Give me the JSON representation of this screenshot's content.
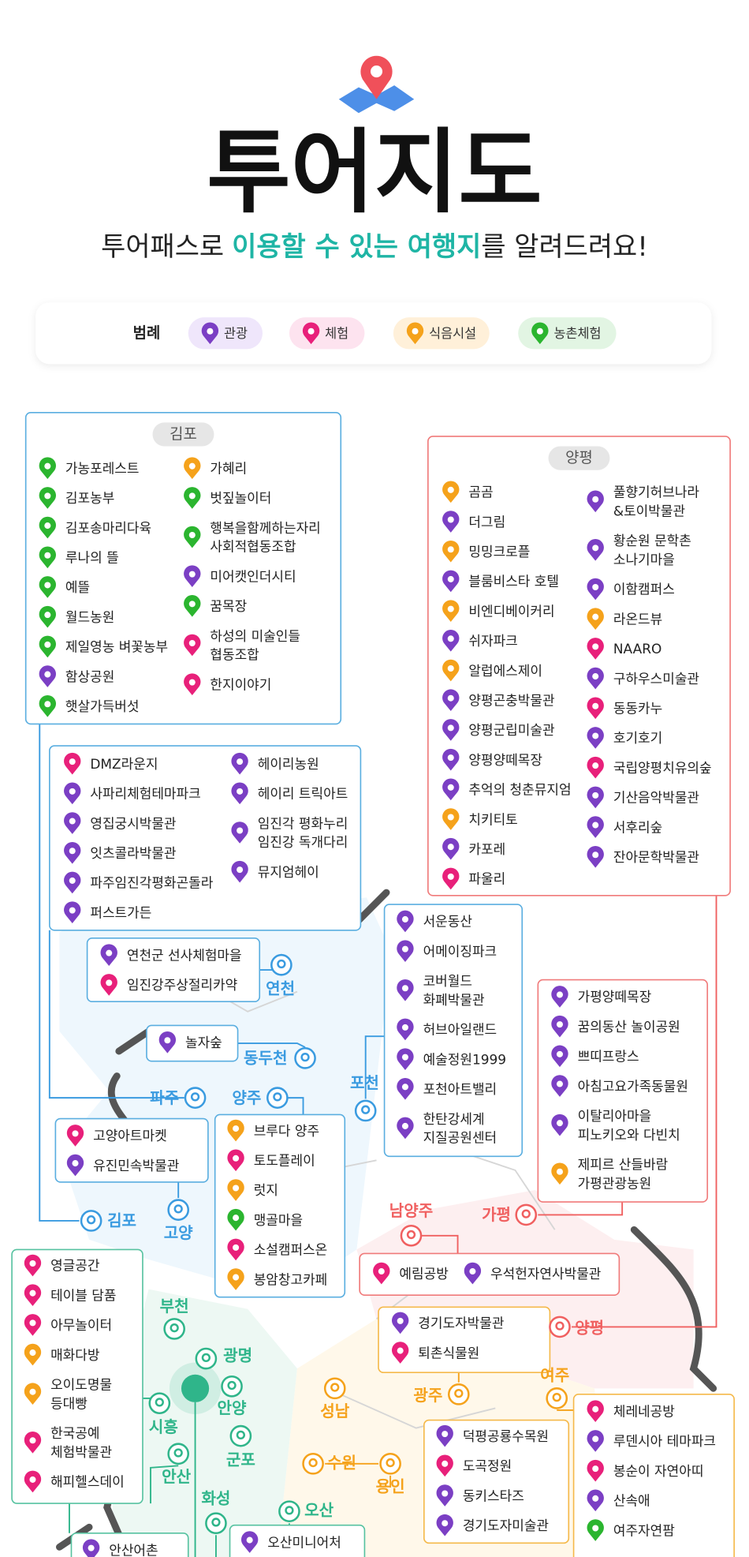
{
  "header": {
    "title": "투어지도",
    "subtitle": [
      "투어패스로",
      "이용할 수 있는 여행지",
      "를 알려드려요!"
    ]
  },
  "legend": {
    "label": "범례",
    "items": [
      {
        "name": "관광",
        "color": "#7b3fc4",
        "bg": "#efe6fb"
      },
      {
        "name": "체험",
        "color": "#e8207a",
        "bg": "#fde3ef"
      },
      {
        "name": "식음시설",
        "color": "#f5a21b",
        "bg": "#fff0d9"
      },
      {
        "name": "농촌체험",
        "color": "#2bb52f",
        "bg": "#e2f5e3"
      }
    ]
  },
  "regions": [
    {
      "title": "김포",
      "columns": [
        [
          {
            "name": [
              "가농포레스트"
            ],
            "kind": 3
          },
          {
            "name": [
              "김포농부"
            ],
            "kind": 3
          },
          {
            "name": [
              "김포송마리다육"
            ],
            "kind": 3
          },
          {
            "name": [
              "루나의 뜰"
            ],
            "kind": 3
          },
          {
            "name": [
              "예뜰"
            ],
            "kind": 3
          },
          {
            "name": [
              "월드농원"
            ],
            "kind": 3
          },
          {
            "name": [
              "제일영농 벼꽃농부"
            ],
            "kind": 3
          },
          {
            "name": [
              "함상공원"
            ],
            "kind": 0
          },
          {
            "name": [
              "햇살가득버섯"
            ],
            "kind": 3
          }
        ],
        [
          {
            "name": [
              "가혜리"
            ],
            "kind": 2
          },
          {
            "name": [
              "벗짚놀이터"
            ],
            "kind": 3
          },
          {
            "name": [
              "행복을함께하는자리",
              "사회적협동조합"
            ],
            "kind": 3
          },
          {
            "name": [
              "미어캣인더시티"
            ],
            "kind": 0
          },
          {
            "name": [
              "꿈목장"
            ],
            "kind": 3
          },
          {
            "name": [
              "하성의 미술인들",
              "협동조합"
            ],
            "kind": 1
          },
          {
            "name": [
              "한지이야기"
            ],
            "kind": 1
          }
        ]
      ]
    },
    {
      "title": "양평",
      "columns": [
        [
          {
            "name": [
              "곰곰"
            ],
            "kind": 2
          },
          {
            "name": [
              "더그림"
            ],
            "kind": 0
          },
          {
            "name": [
              "밍밍크로플"
            ],
            "kind": 2
          },
          {
            "name": [
              "블룸비스타 호텔"
            ],
            "kind": 0
          },
          {
            "name": [
              "비엔디베이커리"
            ],
            "kind": 2
          },
          {
            "name": [
              "쉬자파크"
            ],
            "kind": 0
          },
          {
            "name": [
              "알럽에스제이"
            ],
            "kind": 2
          },
          {
            "name": [
              "양평곤충박물관"
            ],
            "kind": 0
          },
          {
            "name": [
              "양평군립미술관"
            ],
            "kind": 0
          },
          {
            "name": [
              "양평양떼목장"
            ],
            "kind": 0
          },
          {
            "name": [
              "추억의 청춘뮤지엄"
            ],
            "kind": 0
          },
          {
            "name": [
              "치키티토"
            ],
            "kind": 2
          },
          {
            "name": [
              "카포레"
            ],
            "kind": 0
          },
          {
            "name": [
              "파울리"
            ],
            "kind": 1
          }
        ],
        [
          {
            "name": [
              "풀향기허브나라",
              "&토이박물관"
            ],
            "kind": 0
          },
          {
            "name": [
              "황순원 문학촌",
              "소나기마을"
            ],
            "kind": 0
          },
          {
            "name": [
              "이함캠퍼스"
            ],
            "kind": 0
          },
          {
            "name": [
              "라온드뷰"
            ],
            "kind": 2
          },
          {
            "name": [
              "NAARO"
            ],
            "kind": 1
          },
          {
            "name": [
              "구하우스미술관"
            ],
            "kind": 0
          },
          {
            "name": [
              "동동카누"
            ],
            "kind": 1
          },
          {
            "name": [
              "호기호기"
            ],
            "kind": 0
          },
          {
            "name": [
              "국립양평치유의숲"
            ],
            "kind": 1
          },
          {
            "name": [
              "기산음악박물관"
            ],
            "kind": 0
          },
          {
            "name": [
              "서후리숲"
            ],
            "kind": 0
          },
          {
            "name": [
              "잔아문학박물관"
            ],
            "kind": 0
          }
        ]
      ]
    },
    {
      "columns": [
        [
          {
            "name": [
              "DMZ라운지"
            ],
            "kind": 1
          },
          {
            "name": [
              "사파리체험테마파크"
            ],
            "kind": 0
          },
          {
            "name": [
              "영집궁시박물관"
            ],
            "kind": 0
          },
          {
            "name": [
              "잇츠콜라박물관"
            ],
            "kind": 0
          },
          {
            "name": [
              "파주임진각평화곤돌라"
            ],
            "kind": 0
          },
          {
            "name": [
              "퍼스트가든"
            ],
            "kind": 0
          }
        ],
        [
          {
            "name": [
              "헤이리농원"
            ],
            "kind": 0
          },
          {
            "name": [
              "헤이리 트릭아트"
            ],
            "kind": 0
          },
          {
            "name": [
              "임진각 평화누리",
              "임진강 독개다리"
            ],
            "kind": 0
          },
          {
            "name": [
              "뮤지엄헤이"
            ],
            "kind": 0
          }
        ]
      ]
    },
    {
      "columns": [
        [
          {
            "name": [
              "연천군 선사체험마을"
            ],
            "kind": 0
          },
          {
            "name": [
              "임진강주상절리카약"
            ],
            "kind": 1
          }
        ]
      ]
    },
    {
      "columns": [
        [
          {
            "name": [
              "놀자숲"
            ],
            "kind": 0
          }
        ]
      ]
    },
    {
      "columns": [
        [
          {
            "name": [
              "서운동산"
            ],
            "kind": 0
          },
          {
            "name": [
              "어메이징파크"
            ],
            "kind": 0
          },
          {
            "name": [
              "코버월드",
              "화폐박물관"
            ],
            "kind": 0
          },
          {
            "name": [
              "허브아일랜드"
            ],
            "kind": 0
          },
          {
            "name": [
              "예술정원1999"
            ],
            "kind": 0
          },
          {
            "name": [
              "포천아트밸리"
            ],
            "kind": 0
          },
          {
            "name": [
              "한탄강세계",
              "지질공원센터"
            ],
            "kind": 0
          }
        ]
      ]
    },
    {
      "columns": [
        [
          {
            "name": [
              "가평양떼목장"
            ],
            "kind": 0
          },
          {
            "name": [
              "꿈의동산 놀이공원"
            ],
            "kind": 0
          },
          {
            "name": [
              "쁘띠프랑스"
            ],
            "kind": 0
          },
          {
            "name": [
              "아침고요가족동물원"
            ],
            "kind": 0
          },
          {
            "name": [
              "이탈리아마을",
              "피노키오와 다빈치"
            ],
            "kind": 0
          },
          {
            "name": [
              "제피르 산들바람",
              "가평관광농원"
            ],
            "kind": 2
          }
        ]
      ]
    },
    {
      "columns": [
        [
          {
            "name": [
              "고양아트마켓"
            ],
            "kind": 1
          },
          {
            "name": [
              "유진민속박물관"
            ],
            "kind": 0
          }
        ]
      ]
    },
    {
      "columns": [
        [
          {
            "name": [
              "브루다 양주"
            ],
            "kind": 2
          },
          {
            "name": [
              "토도플레이"
            ],
            "kind": 1
          },
          {
            "name": [
              "럿지"
            ],
            "kind": 2
          },
          {
            "name": [
              "맹골마을"
            ],
            "kind": 3
          },
          {
            "name": [
              "소설캠퍼스온"
            ],
            "kind": 1
          },
          {
            "name": [
              "봉암창고카페"
            ],
            "kind": 2
          }
        ]
      ]
    },
    {
      "columns": [
        [
          {
            "name": [
              "예림공방"
            ],
            "kind": 1
          }
        ],
        [
          {
            "name": [
              "우석헌자연사박물관"
            ],
            "kind": 0
          }
        ]
      ]
    },
    {
      "columns": [
        [
          {
            "name": [
              "경기도자박물관"
            ],
            "kind": 0
          },
          {
            "name": [
              "퇴촌식물원"
            ],
            "kind": 1
          }
        ]
      ]
    },
    {
      "columns": [
        [
          {
            "name": [
              "영글공간"
            ],
            "kind": 1
          },
          {
            "name": [
              "테이블 담품"
            ],
            "kind": 1
          },
          {
            "name": [
              "아무놀이터"
            ],
            "kind": 1
          },
          {
            "name": [
              "매화다방"
            ],
            "kind": 2
          },
          {
            "name": [
              "오이도명물",
              "등대빵"
            ],
            "kind": 2
          },
          {
            "name": [
              "한국공예",
              "체험박물관"
            ],
            "kind": 1
          },
          {
            "name": [
              "해피헬스데이"
            ],
            "kind": 1
          }
        ]
      ]
    },
    {
      "columns": [
        [
          {
            "name": [
              "덕평공룡수목원"
            ],
            "kind": 0
          },
          {
            "name": [
              "도곡정원"
            ],
            "kind": 1
          },
          {
            "name": [
              "동키스타즈"
            ],
            "kind": 0
          },
          {
            "name": [
              "경기도자미술관"
            ],
            "kind": 0
          }
        ]
      ]
    },
    {
      "columns": [
        [
          {
            "name": [
              "체레네공방"
            ],
            "kind": 1
          },
          {
            "name": [
              "루덴시아 테마파크"
            ],
            "kind": 0
          },
          {
            "name": [
              "봉순이 자연아띠"
            ],
            "kind": 1
          },
          {
            "name": [
              "산속애"
            ],
            "kind": 0
          },
          {
            "name": [
              "여주자연팜"
            ],
            "kind": 3
          }
        ]
      ]
    },
    {
      "columns": [
        [
          {
            "name": [
              "안산어촌"
            ],
            "kind": 0
          }
        ]
      ]
    },
    {
      "columns": [
        [
          {
            "name": [
              "오산미니어처"
            ],
            "kind": 0
          }
        ]
      ]
    }
  ],
  "cities": [
    "연천",
    "동두천",
    "포천",
    "파주",
    "양주",
    "김포",
    "고양",
    "남양주",
    "가평",
    "양평",
    "부천",
    "광명",
    "시흥",
    "안양",
    "군포",
    "안산",
    "화성",
    "오산",
    "성남",
    "광주",
    "여주",
    "수원",
    "용인"
  ]
}
